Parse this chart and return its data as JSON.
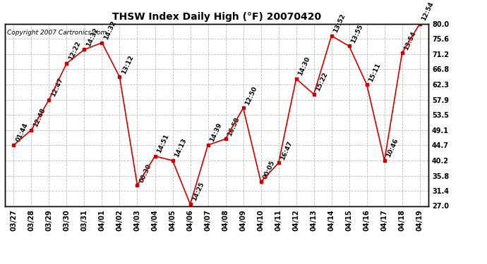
{
  "title": "THSW Index Daily High (°F) 20070420",
  "copyright": "Copyright 2007 Cartronics.com",
  "x_labels": [
    "03/27",
    "03/28",
    "03/29",
    "03/30",
    "03/31",
    "04/01",
    "04/02",
    "04/03",
    "04/04",
    "04/05",
    "04/06",
    "04/07",
    "04/08",
    "04/09",
    "04/10",
    "04/11",
    "04/12",
    "04/13",
    "04/14",
    "04/15",
    "04/16",
    "04/17",
    "04/18",
    "04/19"
  ],
  "y_values": [
    44.7,
    49.1,
    57.9,
    68.5,
    72.5,
    74.5,
    64.5,
    33.0,
    41.5,
    40.2,
    27.5,
    44.7,
    46.5,
    55.5,
    34.0,
    39.5,
    64.0,
    59.5,
    76.5,
    73.5,
    62.3,
    40.2,
    71.5,
    80.0
  ],
  "point_labels": [
    "01:44",
    "12:48",
    "12:47",
    "12:22",
    "14:32",
    "14:32",
    "13:12",
    "00:30",
    "14:51",
    "14:13",
    "14:25",
    "14:39",
    "16:58",
    "12:50",
    "00:05",
    "16:47",
    "14:30",
    "15:22",
    "13:52",
    "13:55",
    "15:11",
    "10:46",
    "13:54",
    "12:54"
  ],
  "ylim": [
    27.0,
    80.0
  ],
  "yticks": [
    27.0,
    31.4,
    35.8,
    40.2,
    44.7,
    49.1,
    53.5,
    57.9,
    62.3,
    66.8,
    71.2,
    75.6,
    80.0
  ],
  "line_color": "#cc0000",
  "marker_color": "#cc0000",
  "bg_color": "#ffffff",
  "grid_color": "#bbbbbb",
  "title_fontsize": 10,
  "label_fontsize": 6.5,
  "tick_fontsize": 7,
  "copyright_fontsize": 6.5
}
